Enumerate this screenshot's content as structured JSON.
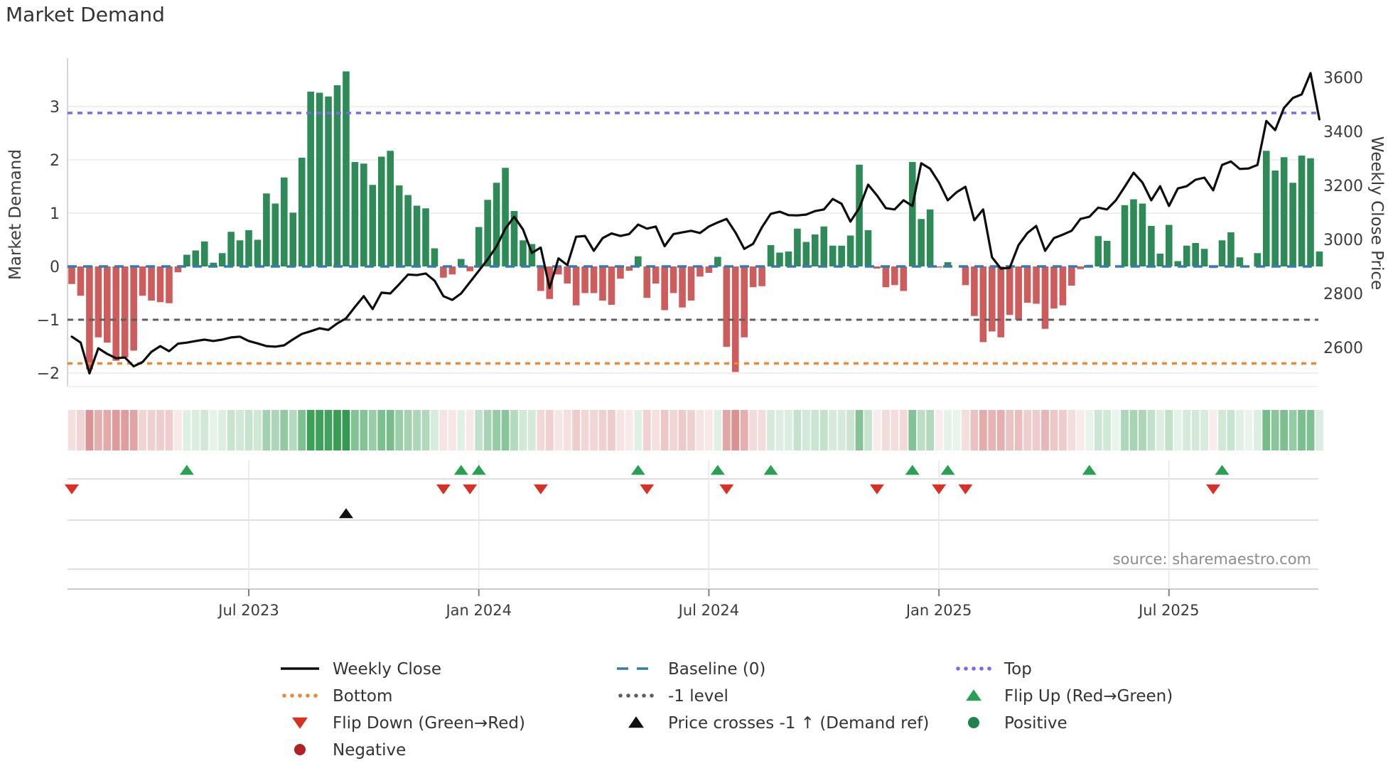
{
  "title": "Market Demand",
  "source": "source: sharemaestro.com",
  "axes": {
    "left_label": "Market Demand",
    "right_label": "Weekly Close Price",
    "left_tick_values": [
      3,
      2,
      1,
      0,
      -1,
      -2
    ],
    "left_ticks": [
      "3",
      "2",
      "1",
      "0",
      "−1",
      "−2"
    ],
    "right_tick_values": [
      3600,
      3400,
      3200,
      3000,
      2800,
      2600
    ],
    "right_ticks": [
      "3600",
      "3400",
      "3200",
      "3000",
      "2800",
      "2600"
    ],
    "x_ticks": [
      "Jul 2023",
      "Jan 2024",
      "Jul 2024",
      "Jan 2025",
      "Jul 2025"
    ]
  },
  "colors": {
    "green": "#2e8b57",
    "red": "#cd5c5c",
    "line": "#0d0d0d",
    "baseline": "#3579b5",
    "top": "#7b68ee",
    "bottom": "#ee8833",
    "minus1": "#5f5f5f",
    "flip_up": "#2aa052",
    "flip_down": "#d93025",
    "black": "#111111",
    "neg_legend": "#b22222",
    "pos_legend": "#1e8449",
    "grid": "#e8e8f0",
    "spine": "#c9c9cf",
    "tick_text": "#3b3b3b"
  },
  "legend": {
    "col1": [
      {
        "swatch": "line",
        "colorKey": "line",
        "label": "Weekly Close"
      },
      {
        "swatch": "dotted",
        "colorKey": "bottom",
        "label": "Bottom"
      },
      {
        "swatch": "tri-down",
        "colorKey": "flip_down",
        "label": "Flip Down (Green→Red)"
      },
      {
        "swatch": "circle",
        "colorKey": "neg_legend",
        "label": "Negative"
      }
    ],
    "col2": [
      {
        "swatch": "dashes",
        "colorKey": "baseline",
        "label": "Baseline (0)"
      },
      {
        "swatch": "dotted",
        "colorKey": "minus1",
        "label": "-1 level"
      },
      {
        "swatch": "tri-up",
        "colorKey": "black",
        "label": "Price crosses -1 ↑ (Demand ref)"
      }
    ],
    "col3": [
      {
        "swatch": "dotted",
        "colorKey": "top",
        "label": "Top"
      },
      {
        "swatch": "tri-up",
        "colorKey": "flip_up",
        "label": "Flip Up (Red→Green)"
      },
      {
        "swatch": "circle",
        "colorKey": "pos_legend",
        "label": "Positive"
      }
    ]
  },
  "chart_data": {
    "type": "bar+line",
    "title": "Market Demand",
    "xlabel": "",
    "ylabel_left": "Market Demand",
    "ylabel_right": "Weekly Close Price",
    "demand_ylim": [
      -2.45,
      3.85
    ],
    "price_ylim": [
      2450,
      3650
    ],
    "levels": {
      "top": 2.88,
      "bottom": -1.82,
      "minus1": -1,
      "baseline": 0
    },
    "x_tick_weeks": [
      20,
      46,
      72,
      98,
      124
    ],
    "demand": [
      -0.33,
      -0.55,
      -1.93,
      -1.33,
      -1.43,
      -1.77,
      -1.71,
      -1.58,
      -0.55,
      -0.64,
      -0.67,
      -0.69,
      -0.11,
      0.22,
      0.3,
      0.47,
      0.07,
      0.25,
      0.65,
      0.49,
      0.68,
      0.5,
      1.37,
      1.18,
      1.67,
      1.01,
      2.04,
      3.28,
      3.26,
      3.19,
      3.4,
      3.66,
      1.96,
      1.93,
      1.53,
      2.06,
      2.17,
      1.52,
      1.34,
      1.14,
      1.09,
      0.34,
      -0.21,
      -0.15,
      0.14,
      -0.09,
      0.74,
      1.25,
      1.57,
      1.85,
      1.04,
      0.49,
      0.42,
      -0.46,
      -0.61,
      -0.15,
      -0.32,
      -0.73,
      -0.5,
      -0.5,
      -0.64,
      -0.72,
      -0.23,
      -0.08,
      0.19,
      -0.59,
      -0.32,
      -0.82,
      -0.5,
      -0.77,
      -0.64,
      -0.19,
      -0.12,
      0.18,
      -1.51,
      -1.98,
      -1.33,
      -0.39,
      -0.37,
      0.4,
      0.26,
      0.28,
      0.71,
      0.46,
      0.6,
      0.75,
      0.39,
      0.39,
      0.58,
      1.91,
      0.68,
      -0.04,
      -0.39,
      -0.35,
      -0.46,
      1.96,
      0.89,
      1.07,
      -0.02,
      0.08,
      0.0,
      -0.35,
      -0.93,
      -1.42,
      -1.22,
      -1.33,
      -0.91,
      -1.0,
      -0.68,
      -0.7,
      -1.17,
      -0.79,
      -0.73,
      -0.36,
      -0.05,
      0.03,
      0.57,
      0.48,
      0.0,
      1.15,
      1.26,
      1.18,
      0.76,
      0.24,
      0.78,
      0.1,
      0.39,
      0.44,
      0.33,
      -0.03,
      0.49,
      0.64,
      0.17,
      0.0,
      0.25,
      2.17,
      1.8,
      2.05,
      1.57,
      2.08,
      2.03,
      0.28
    ],
    "price": [
      2640,
      2618,
      2504,
      2597,
      2576,
      2560,
      2563,
      2530,
      2546,
      2584,
      2605,
      2586,
      2614,
      2618,
      2624,
      2629,
      2624,
      2629,
      2637,
      2640,
      2624,
      2615,
      2605,
      2603,
      2608,
      2630,
      2650,
      2660,
      2671,
      2665,
      2689,
      2708,
      2750,
      2790,
      2742,
      2803,
      2800,
      2834,
      2870,
      2868,
      2874,
      2847,
      2790,
      2776,
      2800,
      2842,
      2884,
      2926,
      2974,
      3040,
      3084,
      3037,
      2950,
      2970,
      2820,
      2930,
      2905,
      3010,
      3013,
      2958,
      3005,
      3022,
      3013,
      3020,
      3055,
      3040,
      3048,
      2975,
      3020,
      3026,
      3032,
      3024,
      3048,
      3063,
      3076,
      3026,
      2965,
      2984,
      3045,
      3095,
      3103,
      3090,
      3089,
      3092,
      3105,
      3111,
      3150,
      3132,
      3066,
      3116,
      3203,
      3163,
      3116,
      3111,
      3145,
      3124,
      3282,
      3262,
      3211,
      3145,
      3175,
      3195,
      3071,
      3111,
      2934,
      2892,
      2895,
      2979,
      3024,
      3050,
      2958,
      3005,
      3018,
      3032,
      3076,
      3084,
      3118,
      3111,
      3145,
      3195,
      3247,
      3211,
      3145,
      3197,
      3124,
      3189,
      3197,
      3221,
      3229,
      3182,
      3276,
      3289,
      3261,
      3263,
      3276,
      3439,
      3405,
      3487,
      3524,
      3537,
      3616,
      3445
    ],
    "flip_up_weeks": [
      13,
      44,
      46,
      64,
      73,
      79,
      95,
      99,
      115,
      130
    ],
    "flip_down_weeks": [
      0,
      42,
      45,
      53,
      65,
      74,
      91,
      98,
      101,
      129
    ],
    "price_cross_week": 31
  }
}
